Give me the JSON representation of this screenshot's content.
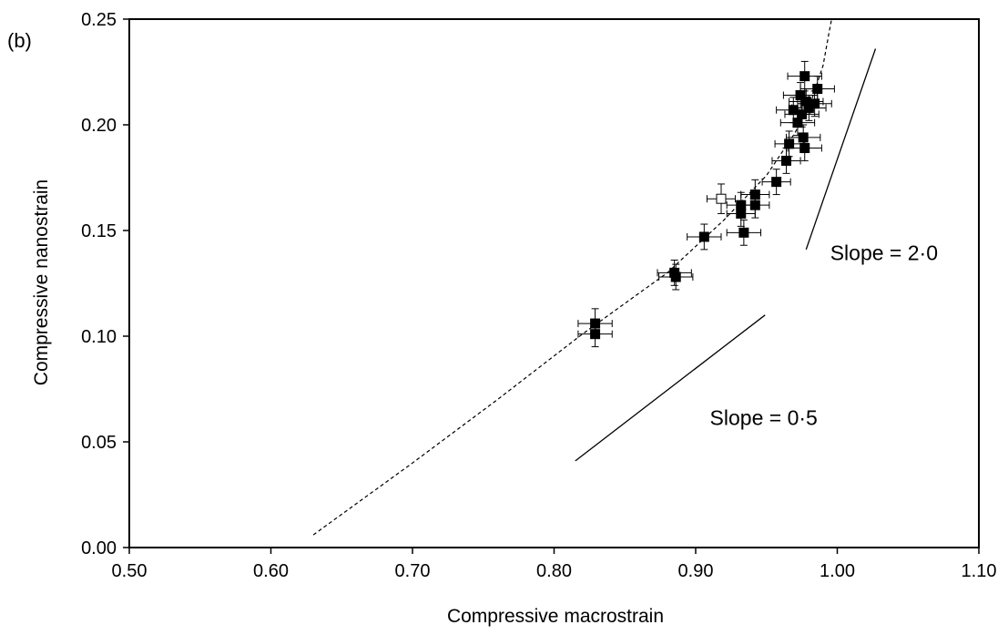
{
  "chart_data": {
    "type": "scatter",
    "panel_label": "(b)",
    "xlabel": "Compressive macrostrain",
    "ylabel": "Compressive nanostrain",
    "xlim": [
      0.5,
      1.1
    ],
    "ylim": [
      0.0,
      0.25
    ],
    "xticks": [
      "0.50",
      "0.60",
      "0.70",
      "0.80",
      "0.90",
      "1.00",
      "1.10"
    ],
    "yticks": [
      "0.00",
      "0.05",
      "0.10",
      "0.15",
      "0.20",
      "0.25"
    ],
    "grid": false,
    "legend": "none",
    "series": [
      {
        "marker": "filled-square",
        "color": "#000000",
        "points": [
          {
            "x": 0.829,
            "y": 0.106,
            "xerr": 0.012,
            "yerr": 0.007
          },
          {
            "x": 0.829,
            "y": 0.101,
            "xerr": 0.012,
            "yerr": 0.006
          },
          {
            "x": 0.885,
            "y": 0.13,
            "xerr": 0.012,
            "yerr": 0.006
          },
          {
            "x": 0.886,
            "y": 0.128,
            "xerr": 0.012,
            "yerr": 0.006
          },
          {
            "x": 0.906,
            "y": 0.147,
            "xerr": 0.012,
            "yerr": 0.006
          },
          {
            "x": 0.932,
            "y": 0.162,
            "xerr": 0.01,
            "yerr": 0.006
          },
          {
            "x": 0.932,
            "y": 0.158,
            "xerr": 0.01,
            "yerr": 0.006
          },
          {
            "x": 0.934,
            "y": 0.149,
            "xerr": 0.012,
            "yerr": 0.006
          },
          {
            "x": 0.942,
            "y": 0.167,
            "xerr": 0.01,
            "yerr": 0.007
          },
          {
            "x": 0.942,
            "y": 0.162,
            "xerr": 0.01,
            "yerr": 0.006
          },
          {
            "x": 0.957,
            "y": 0.173,
            "xerr": 0.01,
            "yerr": 0.006
          },
          {
            "x": 0.964,
            "y": 0.183,
            "xerr": 0.01,
            "yerr": 0.006
          },
          {
            "x": 0.966,
            "y": 0.191,
            "xerr": 0.01,
            "yerr": 0.006
          },
          {
            "x": 0.969,
            "y": 0.207,
            "xerr": 0.012,
            "yerr": 0.006
          },
          {
            "x": 0.972,
            "y": 0.201,
            "xerr": 0.012,
            "yerr": 0.006
          },
          {
            "x": 0.974,
            "y": 0.214,
            "xerr": 0.012,
            "yerr": 0.006
          },
          {
            "x": 0.975,
            "y": 0.205,
            "xerr": 0.012,
            "yerr": 0.006
          },
          {
            "x": 0.976,
            "y": 0.194,
            "xerr": 0.012,
            "yerr": 0.006
          },
          {
            "x": 0.977,
            "y": 0.189,
            "xerr": 0.012,
            "yerr": 0.006
          },
          {
            "x": 0.977,
            "y": 0.223,
            "xerr": 0.012,
            "yerr": 0.007
          },
          {
            "x": 0.978,
            "y": 0.211,
            "xerr": 0.012,
            "yerr": 0.006
          },
          {
            "x": 0.98,
            "y": 0.208,
            "xerr": 0.012,
            "yerr": 0.006
          },
          {
            "x": 0.984,
            "y": 0.21,
            "xerr": 0.012,
            "yerr": 0.006
          },
          {
            "x": 0.986,
            "y": 0.217,
            "xerr": 0.012,
            "yerr": 0.006
          }
        ]
      },
      {
        "marker": "open-square",
        "color": "#000000",
        "points": [
          {
            "x": 0.918,
            "y": 0.165,
            "xerr": 0.01,
            "yerr": 0.007
          }
        ]
      }
    ],
    "fit_curve": {
      "style": "dashed",
      "points": [
        [
          0.63,
          0.006
        ],
        [
          0.7,
          0.04
        ],
        [
          0.76,
          0.07
        ],
        [
          0.82,
          0.101
        ],
        [
          0.88,
          0.13
        ],
        [
          0.92,
          0.155
        ],
        [
          0.95,
          0.176
        ],
        [
          0.97,
          0.196
        ],
        [
          0.982,
          0.212
        ],
        [
          0.99,
          0.228
        ],
        [
          0.994,
          0.243
        ],
        [
          0.996,
          0.25
        ]
      ]
    },
    "reference_lines": [
      {
        "label": "Slope = 0·5",
        "from": [
          0.815,
          0.041
        ],
        "to": [
          0.949,
          0.11
        ]
      },
      {
        "label": "Slope = 2·0",
        "from": [
          0.978,
          0.141
        ],
        "to": [
          1.027,
          0.236
        ]
      }
    ],
    "annotations": [
      {
        "text": "Slope = 2·0",
        "x": 0.995,
        "y": 0.136
      },
      {
        "text": "Slope = 0·5",
        "x": 0.91,
        "y": 0.058
      }
    ]
  }
}
